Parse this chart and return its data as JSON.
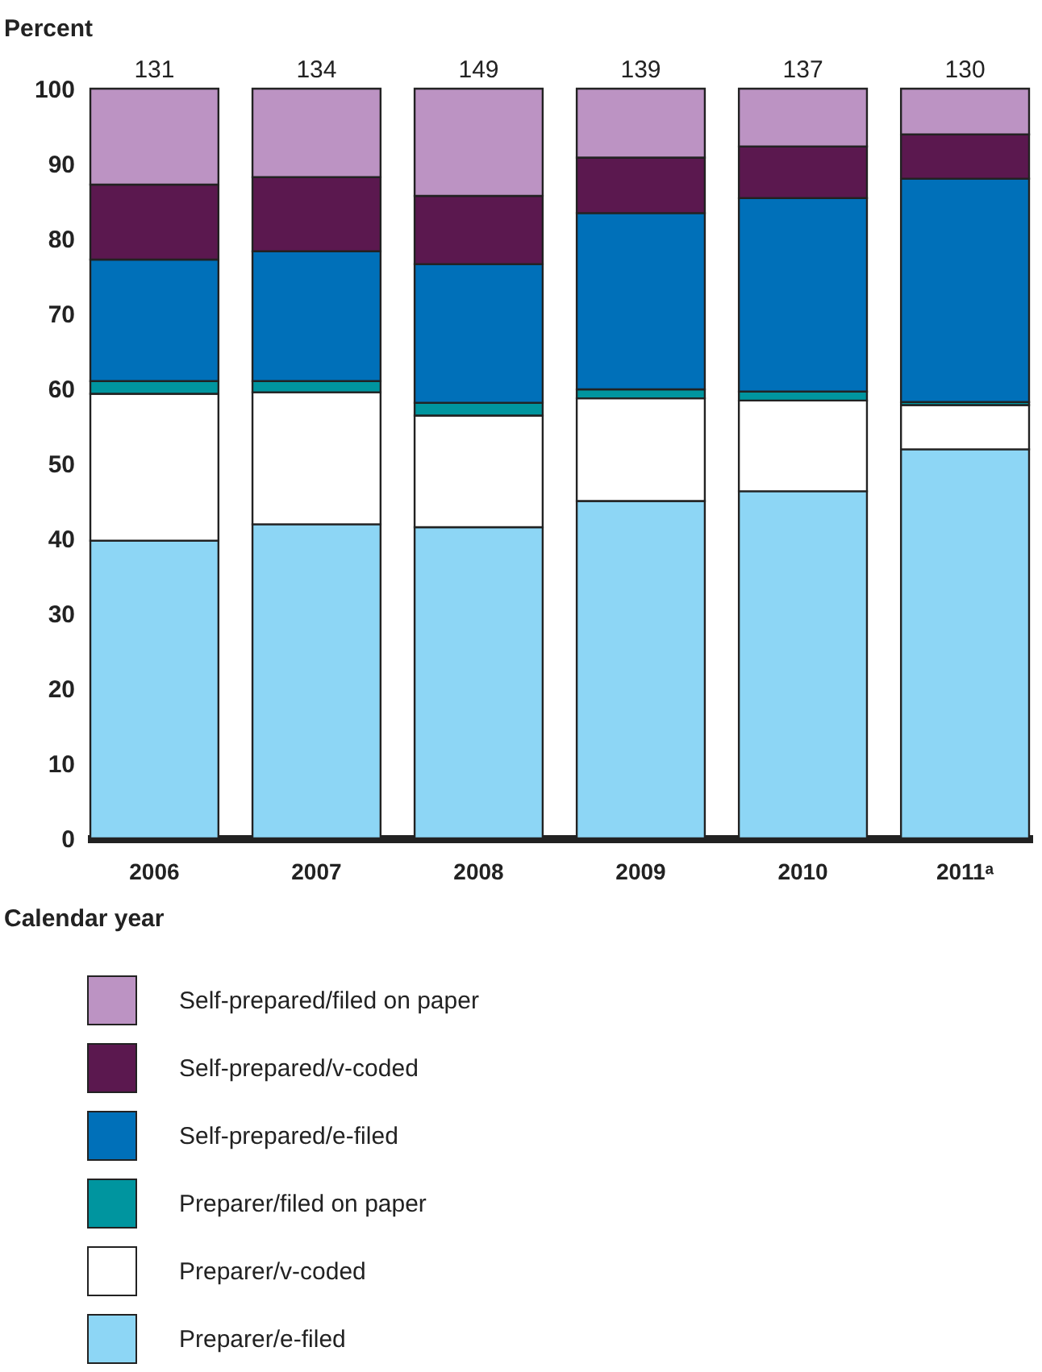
{
  "chart_data": {
    "type": "bar",
    "stacked": true,
    "ylabel": "Percent",
    "xlabel": "Calendar year",
    "categories": [
      "2006",
      "2007",
      "2008",
      "2009",
      "2010",
      "2011ᵃ"
    ],
    "series": [
      {
        "name": "Preparer/e-filed",
        "color": "#8dd6f5",
        "values": [
          39.7,
          41.9,
          41.5,
          45.0,
          46.3,
          51.9
        ]
      },
      {
        "name": "Preparer/v-coded",
        "color": "#ffffff",
        "values": [
          19.6,
          17.6,
          14.9,
          13.7,
          12.1,
          5.9
        ]
      },
      {
        "name": "Preparer/filed on paper",
        "color": "#00959f",
        "values": [
          1.7,
          1.5,
          1.7,
          1.2,
          1.2,
          0.4
        ]
      },
      {
        "name": "Self-prepared/e-filed",
        "color": "#0070b9",
        "values": [
          16.2,
          17.3,
          18.5,
          23.5,
          25.8,
          29.8
        ]
      },
      {
        "name": "Self-prepared/v-coded",
        "color": "#5b184f",
        "values": [
          10.0,
          9.9,
          9.1,
          7.4,
          6.9,
          5.9
        ]
      },
      {
        "name": "Self-prepared/filed on paper",
        "color": "#bc93c3",
        "values": [
          12.8,
          11.8,
          14.3,
          9.2,
          7.7,
          6.1
        ]
      }
    ],
    "annotations": [
      {
        "text": "131",
        "x": "2006",
        "y": 100
      },
      {
        "text": "134",
        "x": "2007",
        "y": 100
      },
      {
        "text": "149",
        "x": "2008",
        "y": 100
      },
      {
        "text": "139",
        "x": "2009",
        "y": 100
      },
      {
        "text": "137",
        "x": "2010",
        "y": 100
      },
      {
        "text": "130",
        "x": "2011ᵃ",
        "y": 100
      }
    ],
    "ylim": [
      0,
      100
    ],
    "yticks": [
      0,
      10,
      20,
      30,
      40,
      50,
      60,
      70,
      80,
      90,
      100
    ],
    "legend": "bottom"
  }
}
